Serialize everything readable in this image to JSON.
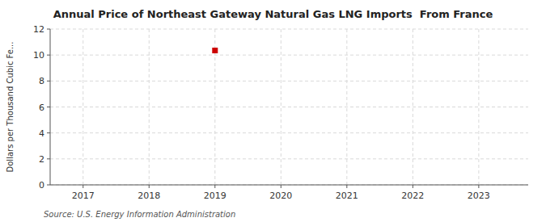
{
  "chart_data": {
    "type": "scatter",
    "title": "Annual Price of Northeast Gateway Natural Gas LNG Imports  From France",
    "ylabel": "Dollars per Thousand Cubic Fe...",
    "annotations": [
      "Source: U.S. Energy Information Administration"
    ],
    "x": [
      2019
    ],
    "values": [
      10.35
    ],
    "color": "#cc0000",
    "marker": "square",
    "xlim": [
      2016.5,
      2023.75
    ],
    "xticks": [
      2017,
      2018,
      2019,
      2020,
      2021,
      2022,
      2023
    ],
    "ylim": [
      0,
      12
    ],
    "yticks": [
      0,
      2,
      4,
      6,
      8,
      10,
      12
    ],
    "grid": true
  }
}
